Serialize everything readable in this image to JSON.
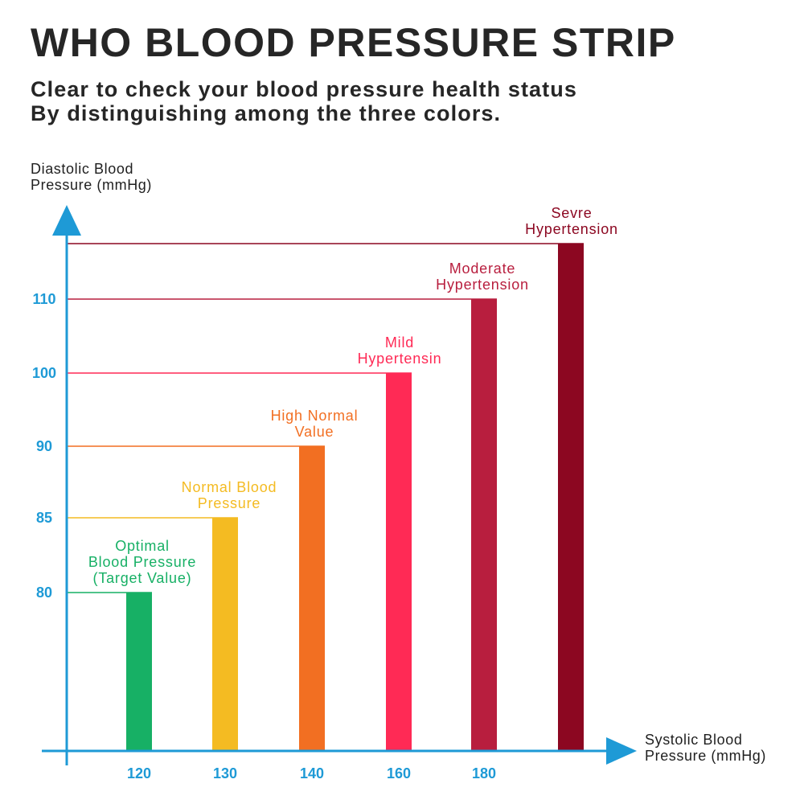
{
  "title": "WHO BLOOD PRESSURE STRIP",
  "subtitle_lines": [
    "Clear to check your blood pressure health status",
    "By distinguishing among the three colors."
  ],
  "chart_data": {
    "type": "bar",
    "ylabel_lines": [
      "Diastolic Blood",
      "Pressure (mmHg)"
    ],
    "xlabel_lines": [
      "Systolic Blood",
      "Pressure (mmHg)"
    ],
    "x_ticks": [
      "120",
      "130",
      "140",
      "160",
      "180"
    ],
    "y_ticks": [
      "80",
      "85",
      "90",
      "100",
      "110"
    ],
    "axis_color": "#1e9ad6",
    "categories": [
      {
        "label_lines": [
          "Optimal",
          "Blood Pressure",
          "(Target Value)"
        ],
        "systolic": "120",
        "diastolic": 80,
        "color": "#17b065"
      },
      {
        "label_lines": [
          "Normal Blood",
          "Pressure"
        ],
        "systolic": "130",
        "diastolic": 85,
        "color": "#f4bb22"
      },
      {
        "label_lines": [
          "High Normal",
          "Value"
        ],
        "systolic": "140",
        "diastolic": 90,
        "color": "#f26f22"
      },
      {
        "label_lines": [
          "Mild",
          "Hypertensin"
        ],
        "systolic": "160",
        "diastolic": 100,
        "color": "#ff2a55"
      },
      {
        "label_lines": [
          "Moderate",
          "Hypertension"
        ],
        "systolic": "180",
        "diastolic": 110,
        "color": "#b81e3e"
      },
      {
        "label_lines": [
          "Sevre",
          "Hypertension"
        ],
        "systolic": "",
        "diastolic": null,
        "color": "#8c0721"
      }
    ]
  }
}
